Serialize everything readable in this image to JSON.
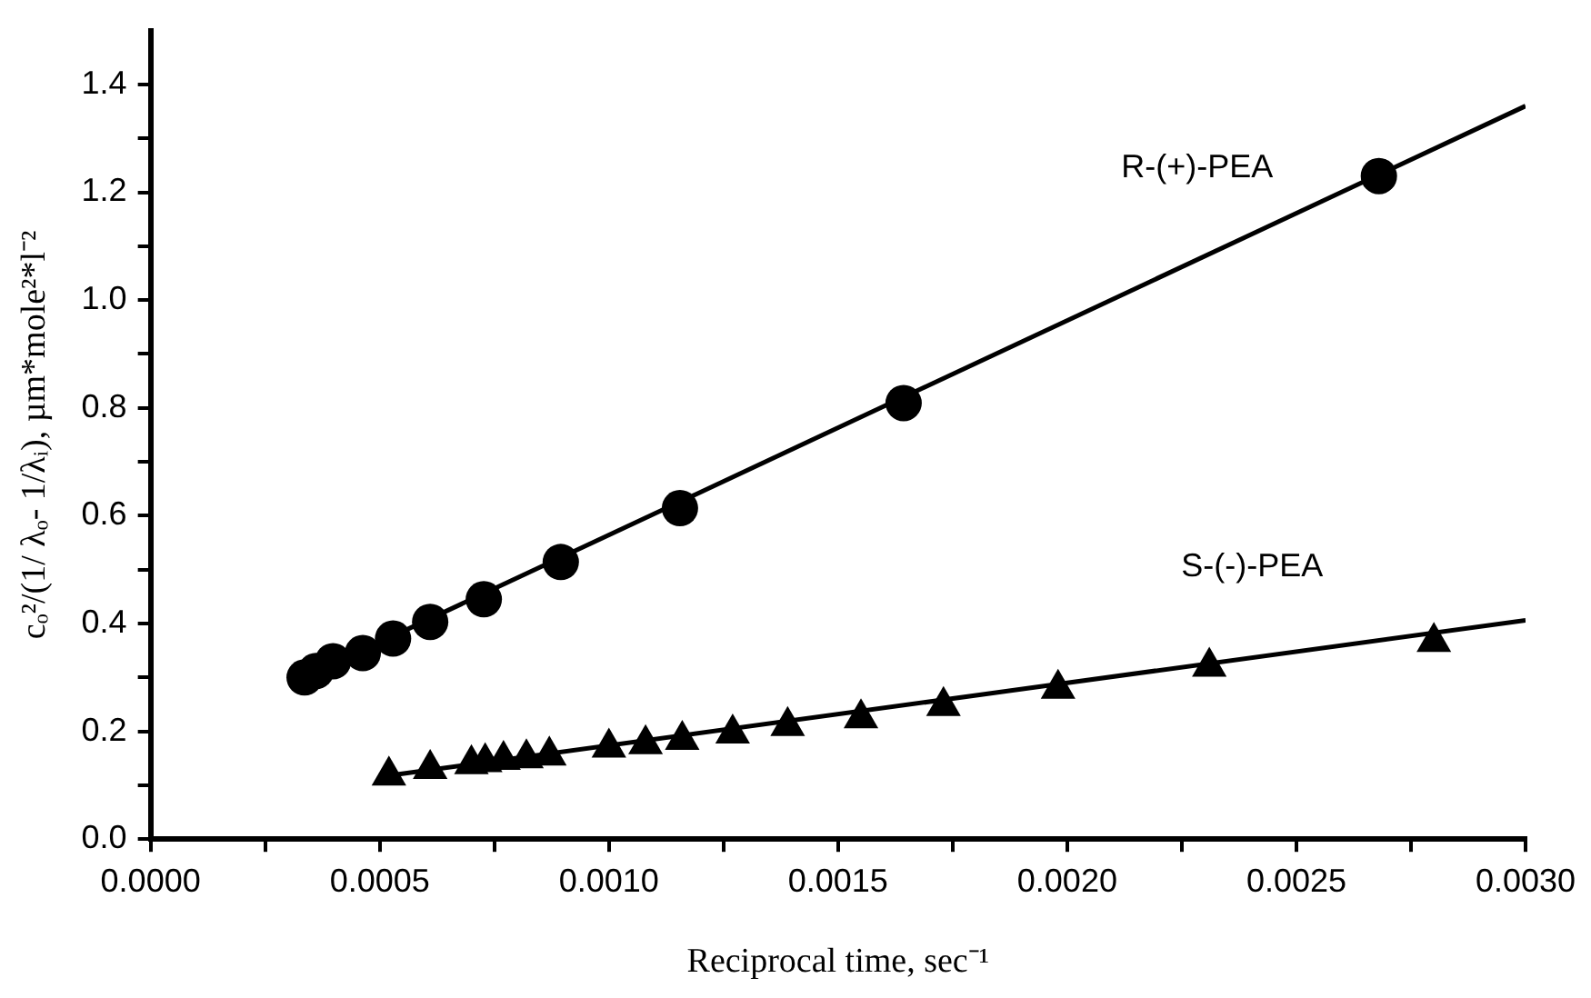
{
  "chart_data": {
    "type": "scatter",
    "xlabel": "Reciprocal time, sec⁻¹",
    "ylabel": "cₒ²/(1/ λₒ- 1/λᵢ), µm*mole²*l⁻²",
    "series": [
      {
        "name": "R-(+)-PEA",
        "color": "#000000",
        "marker": "circle",
        "x": [
          0.000336,
          0.000361,
          0.000398,
          0.000463,
          0.000529,
          0.00061,
          0.000727,
          0.000895,
          0.001155,
          0.001643,
          0.00268
        ],
        "values": [
          0.3,
          0.312,
          0.33,
          0.345,
          0.372,
          0.403,
          0.445,
          0.514,
          0.614,
          0.809,
          1.23
        ]
      },
      {
        "name": "S-(-)-PEA",
        "color": "#000000",
        "marker": "triangle",
        "x": [
          0.00052,
          0.00061,
          0.0007,
          0.00073,
          0.00077,
          0.00082,
          0.00087,
          0.001,
          0.00108,
          0.00116,
          0.00127,
          0.00139,
          0.00155,
          0.00173,
          0.00198,
          0.00231,
          0.0028
        ],
        "values": [
          0.118,
          0.13,
          0.139,
          0.143,
          0.147,
          0.15,
          0.155,
          0.17,
          0.176,
          0.184,
          0.196,
          0.21,
          0.224,
          0.247,
          0.279,
          0.32,
          0.366
        ]
      },
      {
        "type": "line",
        "color": "#000000",
        "marker": "none",
        "line_style": "solid",
        "x": [
          0.000336,
          0.003
        ],
        "values": [
          0.3,
          1.36
        ]
      },
      {
        "type": "line",
        "color": "#000000",
        "marker": "none",
        "line_style": "solid",
        "x": [
          0.00052,
          0.003
        ],
        "values": [
          0.118,
          0.406
        ]
      }
    ],
    "xlim": [
      0,
      0.003
    ],
    "ylim": [
      0,
      1.5
    ],
    "xticks": [
      {
        "value": 0,
        "label": "0.0000"
      },
      {
        "value": 0.00025,
        "label": null
      },
      {
        "value": 0.0005,
        "label": "0.0005"
      },
      {
        "value": 0.00075,
        "label": null
      },
      {
        "value": 0.001,
        "label": "0.0010"
      },
      {
        "value": 0.00125,
        "label": null
      },
      {
        "value": 0.0015,
        "label": "0.0015"
      },
      {
        "value": 0.00175,
        "label": null
      },
      {
        "value": 0.002,
        "label": "0.0020"
      },
      {
        "value": 0.00225,
        "label": null
      },
      {
        "value": 0.0025,
        "label": "0.0025"
      },
      {
        "value": 0.00275,
        "label": null
      },
      {
        "value": 0.003,
        "label": "0.0030"
      }
    ],
    "yticks": [
      {
        "value": 0,
        "label": "0.0"
      },
      {
        "value": 0.1,
        "label": null
      },
      {
        "value": 0.2,
        "label": "0.2"
      },
      {
        "value": 0.3,
        "label": null
      },
      {
        "value": 0.4,
        "label": "0.4"
      },
      {
        "value": 0.5,
        "label": null
      },
      {
        "value": 0.6,
        "label": "0.6"
      },
      {
        "value": 0.7,
        "label": null
      },
      {
        "value": 0.8,
        "label": "0.8"
      },
      {
        "value": 0.9,
        "label": null
      },
      {
        "value": 1.0,
        "label": "1.0"
      },
      {
        "value": 1.1,
        "label": null
      },
      {
        "value": 1.2,
        "label": "1.2"
      },
      {
        "value": 1.3,
        "label": null
      },
      {
        "value": 1.4,
        "label": "1.4"
      }
    ],
    "grid": false,
    "legend": false
  }
}
